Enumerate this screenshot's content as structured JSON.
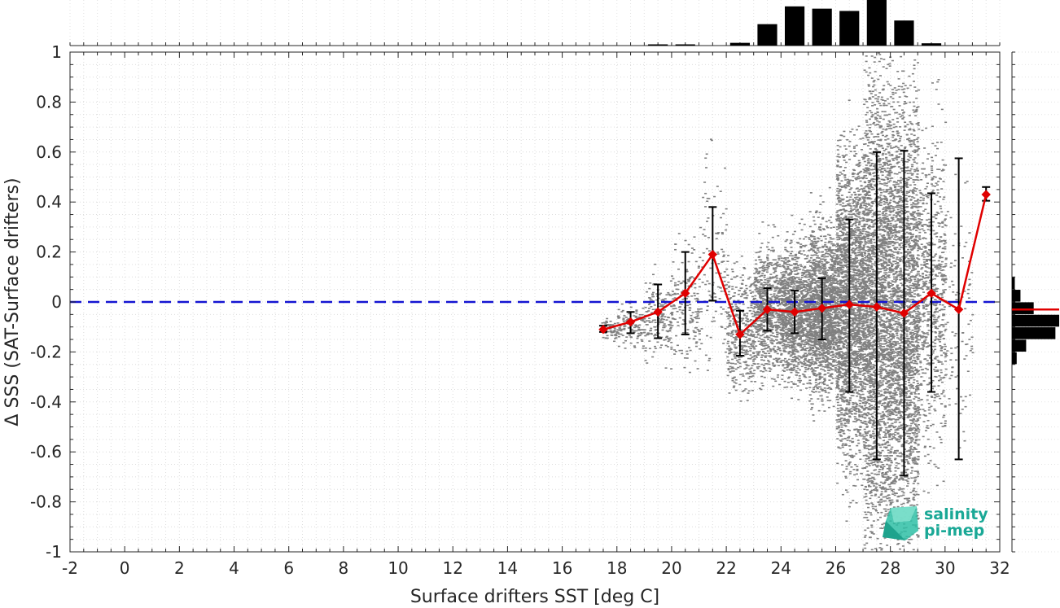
{
  "chart_data": {
    "type": "scatter",
    "xlabel": "Surface drifters SST [deg C]",
    "ylabel": "Δ SSS (SAT-Surface drifters)",
    "xlim": [
      -2,
      32
    ],
    "ylim": [
      -1,
      1
    ],
    "xticks": [
      "-2",
      "0",
      "2",
      "4",
      "6",
      "8",
      "10",
      "12",
      "14",
      "16",
      "18",
      "20",
      "22",
      "24",
      "26",
      "28",
      "30",
      "32"
    ],
    "yticks": [
      "-1",
      "-0.8",
      "-0.6",
      "-0.4",
      "-0.2",
      "0",
      "0.2",
      "0.4",
      "0.6",
      "0.8",
      "1"
    ],
    "grid": "minor dotted",
    "zero_line": {
      "y": 0,
      "color": "#1414d2",
      "style": "dashed"
    },
    "scatter_color": "#808080",
    "scatter_clouds": [
      {
        "x_range": [
          17.4,
          18.0
        ],
        "y_center": -0.11,
        "y_spread": 0.02,
        "density": 2
      },
      {
        "x_range": [
          18.0,
          19.0
        ],
        "y_center": -0.09,
        "y_spread": 0.04,
        "density": 4
      },
      {
        "x_range": [
          19.0,
          20.0
        ],
        "y_center": -0.06,
        "y_spread": 0.08,
        "density": 6
      },
      {
        "x_range": [
          20.0,
          21.0
        ],
        "y_center": -0.02,
        "y_spread": 0.12,
        "density": 6
      },
      {
        "x_range": [
          21.0,
          22.0
        ],
        "y_center": 0.15,
        "y_spread": 0.2,
        "density": 4
      },
      {
        "x_range": [
          22.0,
          23.0
        ],
        "y_center": -0.11,
        "y_spread": 0.12,
        "density": 14
      },
      {
        "x_range": [
          23.0,
          24.0
        ],
        "y_center": -0.03,
        "y_spread": 0.12,
        "density": 26
      },
      {
        "x_range": [
          24.0,
          25.0
        ],
        "y_center": -0.04,
        "y_spread": 0.13,
        "density": 40
      },
      {
        "x_range": [
          25.0,
          26.0
        ],
        "y_center": -0.03,
        "y_spread": 0.16,
        "density": 55
      },
      {
        "x_range": [
          26.0,
          27.0
        ],
        "y_center": -0.01,
        "y_spread": 0.3,
        "density": 75
      },
      {
        "x_range": [
          27.0,
          28.0
        ],
        "y_center": -0.01,
        "y_spread": 0.45,
        "density": 90
      },
      {
        "x_range": [
          28.0,
          29.0
        ],
        "y_center": -0.03,
        "y_spread": 0.45,
        "density": 75
      },
      {
        "x_range": [
          29.0,
          30.0
        ],
        "y_center": 0.03,
        "y_spread": 0.3,
        "density": 25
      },
      {
        "x_range": [
          30.0,
          31.0
        ],
        "y_center": -0.03,
        "y_spread": 0.25,
        "density": 3
      }
    ],
    "binned_mean": {
      "color": "#e00000",
      "marker": "diamond",
      "x": [
        17.5,
        18.5,
        19.5,
        20.5,
        21.5,
        22.5,
        23.5,
        24.5,
        25.5,
        26.5,
        27.5,
        28.5,
        29.5,
        30.5,
        31.5
      ],
      "y": [
        -0.11,
        -0.08,
        -0.04,
        0.035,
        0.19,
        -0.13,
        -0.03,
        -0.04,
        -0.025,
        -0.01,
        -0.02,
        -0.045,
        0.035,
        -0.03,
        0.43
      ],
      "err_low": [
        -0.12,
        -0.125,
        -0.145,
        -0.13,
        0.005,
        -0.215,
        -0.115,
        -0.125,
        -0.15,
        -0.36,
        -0.63,
        -0.695,
        -0.36,
        -0.63,
        0.405
      ],
      "err_high": [
        -0.095,
        -0.04,
        0.07,
        0.2,
        0.38,
        -0.035,
        0.055,
        0.045,
        0.095,
        0.33,
        0.6,
        0.605,
        0.435,
        0.575,
        0.46
      ]
    },
    "top_histogram": {
      "color": "#000000",
      "bin_width": 1,
      "x": [
        19.5,
        20.5,
        21.5,
        22.5,
        23.5,
        24.5,
        25.5,
        26.5,
        27.5,
        28.5,
        29.5,
        30.5
      ],
      "counts": [
        0.01,
        0.01,
        0.0,
        0.06,
        0.47,
        0.86,
        0.81,
        0.76,
        1.0,
        0.55,
        0.05,
        0.0
      ]
    },
    "right_histogram": {
      "color": "#000000",
      "bin_width": 0.05,
      "y": [
        0.225,
        0.175,
        0.125,
        0.075,
        0.025,
        -0.025,
        -0.075,
        -0.125,
        -0.175,
        -0.225,
        -0.275
      ],
      "counts": [
        0.0,
        0.0,
        0.0,
        0.06,
        0.18,
        0.46,
        1.0,
        0.92,
        0.3,
        0.1,
        0.0
      ],
      "mean_line_y": -0.03,
      "mean_line_color": "#e00000"
    }
  },
  "logo": {
    "line1": "salinity",
    "line2": "pi-mep",
    "color": "#1aa896"
  }
}
